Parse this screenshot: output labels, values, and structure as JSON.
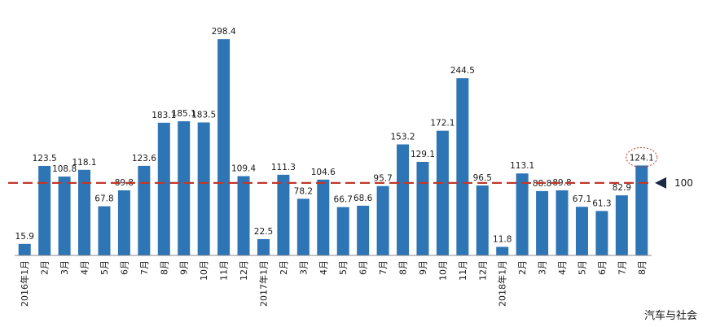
{
  "chart_data": {
    "type": "bar",
    "categories": [
      "2016年1月",
      "2月",
      "3月",
      "4月",
      "5月",
      "6月",
      "7月",
      "8月",
      "9月",
      "10月",
      "11月",
      "12月",
      "2017年1月",
      "2月",
      "3月",
      "4月",
      "5月",
      "6月",
      "7月",
      "8月",
      "9月",
      "10月",
      "11月",
      "12月",
      "2018年1月",
      "2月",
      "3月",
      "4月",
      "5月",
      "6月",
      "7月",
      "8月"
    ],
    "values": [
      15.9,
      123.5,
      108.8,
      118.1,
      67.8,
      89.8,
      123.6,
      183.1,
      185.1,
      183.5,
      298.4,
      109.4,
      22.5,
      111.3,
      78.2,
      104.6,
      66.7,
      68.6,
      95.7,
      153.2,
      129.1,
      172.1,
      244.5,
      96.5,
      11.8,
      113.1,
      88.8,
      89.8,
      67.1,
      61.3,
      82.9,
      124.1
    ],
    "ylim": [
      0,
      330
    ],
    "reference_line": {
      "value": 100,
      "label": "100",
      "color": "#c0392b",
      "style": "dashed"
    },
    "highlighted_index": 31,
    "bar_color": "#2e75b6",
    "title": "",
    "xlabel": "",
    "ylabel": "",
    "grid": false,
    "legend": "none"
  },
  "watermark": {
    "text": "汽车与社会"
  }
}
